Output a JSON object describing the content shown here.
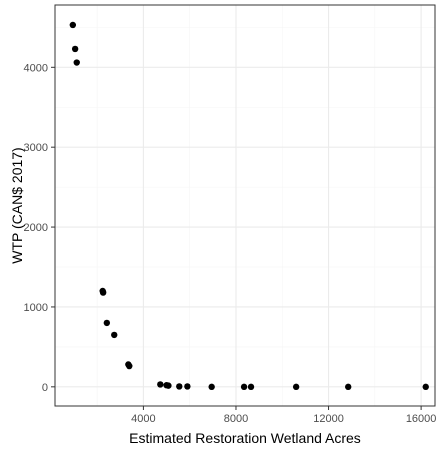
{
  "chart_data": {
    "type": "scatter",
    "title": "",
    "xlabel": "Estimated Restoration Wetland Acres",
    "ylabel": "WTP (CAN$ 2017)",
    "xlim": [
      180,
      16600
    ],
    "ylim": [
      -240,
      4780
    ],
    "x_ticks": [
      4000,
      8000,
      12000,
      16000
    ],
    "x_tick_labels": [
      "4000",
      "8000",
      "12000",
      "16000"
    ],
    "y_ticks": [
      0,
      1000,
      2000,
      3000,
      4000
    ],
    "y_tick_labels": [
      "0",
      "1000",
      "2000",
      "3000",
      "4000"
    ],
    "grid": true,
    "points": [
      {
        "x": 950,
        "y": 4530
      },
      {
        "x": 1050,
        "y": 4230
      },
      {
        "x": 1120,
        "y": 4060
      },
      {
        "x": 2240,
        "y": 1200
      },
      {
        "x": 2260,
        "y": 1180
      },
      {
        "x": 2420,
        "y": 800
      },
      {
        "x": 2740,
        "y": 650
      },
      {
        "x": 3350,
        "y": 280
      },
      {
        "x": 3390,
        "y": 260
      },
      {
        "x": 4730,
        "y": 30
      },
      {
        "x": 5000,
        "y": 20
      },
      {
        "x": 5080,
        "y": 15
      },
      {
        "x": 5550,
        "y": 5
      },
      {
        "x": 5900,
        "y": 5
      },
      {
        "x": 6950,
        "y": 0
      },
      {
        "x": 8350,
        "y": 0
      },
      {
        "x": 8650,
        "y": 0
      },
      {
        "x": 10600,
        "y": 0
      },
      {
        "x": 12850,
        "y": 0
      },
      {
        "x": 16200,
        "y": 0
      }
    ],
    "colors": {
      "point": "#000000",
      "panel_border": "#333333",
      "grid_major": "#ebebeb",
      "grid_minor": "#f5f5f5",
      "tick": "#333333"
    }
  }
}
